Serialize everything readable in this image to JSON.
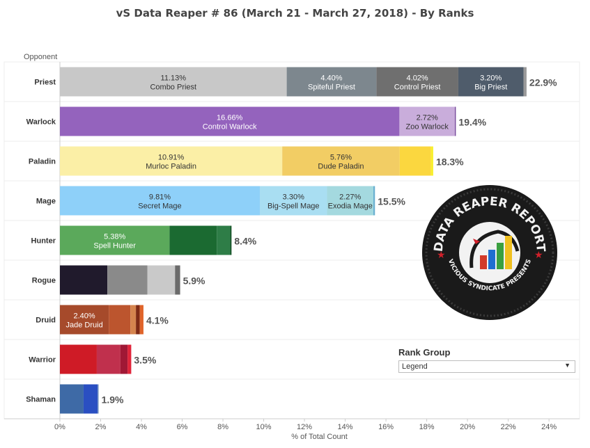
{
  "title": "vS Data Reaper #  86 (March 21 - March 27, 2018) - By Ranks",
  "row_header": "Opponent",
  "x_axis_title": "% of Total Count",
  "rank_group": {
    "label": "Rank Group",
    "selected": "Legend"
  },
  "logo": {
    "text_top": "DATA REAPER REPORT",
    "text_bottom": "VICIOUS SYNDICATE PRESENTS"
  },
  "chart_data": {
    "type": "bar",
    "orientation": "horizontal",
    "stacked": true,
    "xlabel": "% of Total Count",
    "ylabel": "Opponent",
    "xlim": [
      0,
      25.5
    ],
    "x_ticks": [
      0,
      2,
      4,
      6,
      8,
      10,
      12,
      14,
      16,
      18,
      20,
      22,
      24
    ],
    "x_tick_labels": [
      "0%",
      "2%",
      "4%",
      "6%",
      "8%",
      "10%",
      "12%",
      "14%",
      "16%",
      "18%",
      "20%",
      "22%",
      "24%"
    ],
    "grid": false,
    "categories": [
      "Priest",
      "Warlock",
      "Paladin",
      "Mage",
      "Hunter",
      "Rogue",
      "Druid",
      "Warrior",
      "Shaman"
    ],
    "rows": [
      {
        "class": "Priest",
        "total_label": "22.9%",
        "segments": [
          {
            "value": 11.13,
            "color": "#c8c8c8",
            "label": "11.13%",
            "name": "Combo Priest",
            "text_color": "#333333"
          },
          {
            "value": 4.4,
            "color": "#7d878e",
            "label": "4.40%",
            "name": "Spiteful Priest",
            "text_color": "#ffffff"
          },
          {
            "value": 4.02,
            "color": "#6f6f6f",
            "label": "4.02%",
            "name": "Control Priest",
            "text_color": "#ffffff"
          },
          {
            "value": 3.2,
            "color": "#4f5c6b",
            "label": "3.20%",
            "name": "Big Priest",
            "text_color": "#ffffff"
          },
          {
            "value": 0.15,
            "color": "#9a9a9a"
          }
        ]
      },
      {
        "class": "Warlock",
        "total_label": "19.4%",
        "segments": [
          {
            "value": 16.66,
            "color": "#9463bd",
            "label": "16.66%",
            "name": "Control Warlock",
            "text_color": "#ffffff"
          },
          {
            "value": 2.72,
            "color": "#c9addb",
            "label": "2.72%",
            "name": "Zoo Warlock",
            "text_color": "#333333"
          },
          {
            "value": 0.05,
            "color": "#7a4f9e"
          }
        ]
      },
      {
        "class": "Paladin",
        "total_label": "18.3%",
        "segments": [
          {
            "value": 10.91,
            "color": "#fbefa6",
            "label": "10.91%",
            "name": "Murloc Paladin",
            "text_color": "#333333"
          },
          {
            "value": 5.76,
            "color": "#f2cd64",
            "label": "5.76%",
            "name": "Dude Paladin",
            "text_color": "#333333"
          },
          {
            "value": 1.53,
            "color": "#fbd73f"
          },
          {
            "value": 0.12,
            "color": "#f8ef2f"
          }
        ]
      },
      {
        "class": "Mage",
        "total_label": "15.5%",
        "segments": [
          {
            "value": 9.81,
            "color": "#8ed0f9",
            "label": "9.81%",
            "name": "Secret Mage",
            "text_color": "#333333"
          },
          {
            "value": 3.3,
            "color": "#a9def2",
            "label": "3.30%",
            "name": "Big-Spell Mage",
            "text_color": "#333333"
          },
          {
            "value": 2.27,
            "color": "#a4d9df",
            "label": "2.27%",
            "name": "Exodia Mage",
            "text_color": "#333333"
          },
          {
            "value": 0.08,
            "color": "#6ab0d0"
          }
        ]
      },
      {
        "class": "Hunter",
        "total_label": "8.4%",
        "segments": [
          {
            "value": 5.38,
            "color": "#5ba95b",
            "label": "5.38%",
            "name": "Spell Hunter",
            "text_color": "#ffffff"
          },
          {
            "value": 2.32,
            "color": "#1b6a31"
          },
          {
            "value": 0.66,
            "color": "#2e7d47"
          },
          {
            "value": 0.06,
            "color": "#0d4d20"
          }
        ]
      },
      {
        "class": "Rogue",
        "total_label": "5.9%",
        "segments": [
          {
            "value": 2.33,
            "color": "#201a2c"
          },
          {
            "value": 1.96,
            "color": "#8a8a8a"
          },
          {
            "value": 1.36,
            "color": "#c9c9c9"
          },
          {
            "value": 0.25,
            "color": "#6b6b6b"
          }
        ]
      },
      {
        "class": "Druid",
        "total_label": "4.1%",
        "segments": [
          {
            "value": 2.4,
            "color": "#a64a2b",
            "label": "2.40%",
            "name": "Jade Druid",
            "text_color": "#ffffff"
          },
          {
            "value": 1.06,
            "color": "#bc552e"
          },
          {
            "value": 0.27,
            "color": "#d5844e"
          },
          {
            "value": 0.19,
            "color": "#7e2a14"
          },
          {
            "value": 0.18,
            "color": "#e0642a"
          }
        ]
      },
      {
        "class": "Warrior",
        "total_label": "3.5%",
        "segments": [
          {
            "value": 1.81,
            "color": "#cf1b26"
          },
          {
            "value": 1.16,
            "color": "#c0304d"
          },
          {
            "value": 0.35,
            "color": "#a01835"
          },
          {
            "value": 0.18,
            "color": "#e0243a"
          }
        ]
      },
      {
        "class": "Shaman",
        "total_label": "1.9%",
        "segments": [
          {
            "value": 1.16,
            "color": "#3e6aa6"
          },
          {
            "value": 0.69,
            "color": "#2a4fc2"
          },
          {
            "value": 0.05,
            "color": "#7090c0"
          }
        ]
      }
    ]
  }
}
